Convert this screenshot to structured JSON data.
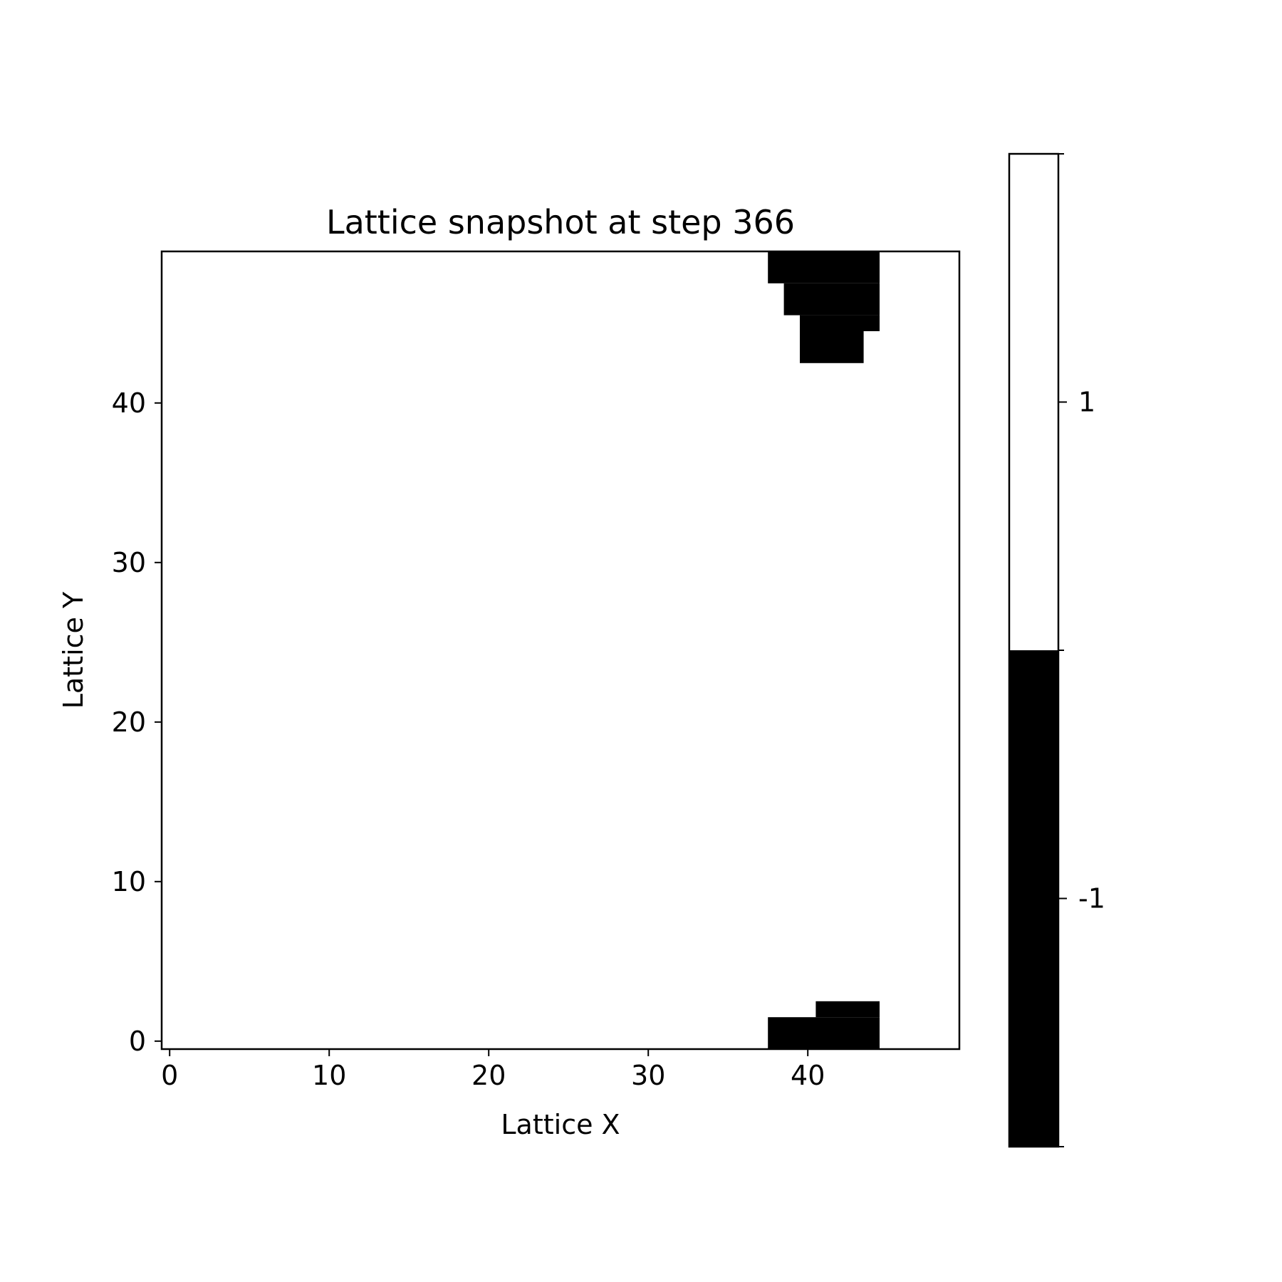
{
  "chart_data": {
    "type": "heatmap",
    "title": "Lattice snapshot at step 366",
    "xlabel": "Lattice X",
    "ylabel": "Lattice Y",
    "lattice_size": [
      50,
      50
    ],
    "xlim": [
      -0.5,
      49.5
    ],
    "ylim": [
      -0.5,
      49.5
    ],
    "x_ticks": [
      0,
      10,
      20,
      30,
      40
    ],
    "y_ticks": [
      0,
      10,
      20,
      30,
      40
    ],
    "grid": false,
    "colorbar": {
      "position": "right",
      "ticks": [
        1,
        -1
      ],
      "tick_labels": [
        "1",
        "-1"
      ],
      "colors": {
        "1": "#ffffff",
        "-1": "#000000"
      }
    },
    "default_value": 1,
    "regions_value_minus_1": [
      {
        "x_start": 38,
        "x_end": 44,
        "y_start": 48,
        "y_end": 49
      },
      {
        "x_start": 39,
        "x_end": 44,
        "y_start": 46,
        "y_end": 47
      },
      {
        "x_start": 40,
        "x_end": 44,
        "y_start": 45,
        "y_end": 45
      },
      {
        "x_start": 40,
        "x_end": 43,
        "y_start": 43,
        "y_end": 44
      },
      {
        "x_start": 41,
        "x_end": 44,
        "y_start": 2,
        "y_end": 2
      },
      {
        "x_start": 38,
        "x_end": 44,
        "y_start": 0,
        "y_end": 1
      }
    ]
  }
}
